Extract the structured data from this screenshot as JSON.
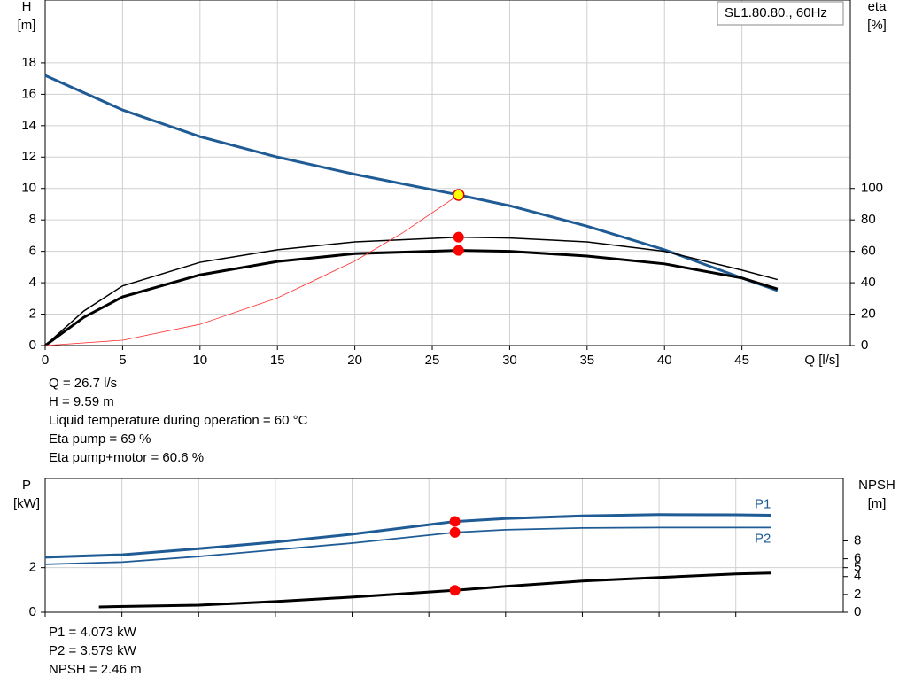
{
  "chart_data": [
    {
      "type": "line",
      "legend_box": "SL1.80.80., 60Hz",
      "ylabel": [
        "H",
        "[m]"
      ],
      "y2label": [
        "eta",
        "[%]"
      ],
      "xlabel": "Q [l/s]",
      "xlim": [
        0,
        52
      ],
      "xticks": [
        0,
        5,
        10,
        15,
        20,
        25,
        30,
        35,
        40,
        45
      ],
      "ylim": [
        0,
        22
      ],
      "yticks": [
        0,
        2,
        4,
        6,
        8,
        10,
        12,
        14,
        16,
        18
      ],
      "y2lim": [
        0,
        220
      ],
      "y2ticks": [
        0,
        20,
        40,
        60,
        80,
        100
      ],
      "grid": true,
      "series": [
        {
          "color": "#1f5b95",
          "width": 3,
          "axis": "y",
          "x": [
            0,
            5,
            10,
            15,
            20,
            26.7,
            30,
            35,
            40,
            45,
            47.3
          ],
          "values": [
            17.2,
            15.0,
            13.3,
            12.0,
            10.9,
            9.59,
            8.9,
            7.6,
            6.1,
            4.3,
            3.5
          ]
        },
        {
          "color": "#000000",
          "width": 1.5,
          "axis": "y2",
          "x": [
            0,
            2.5,
            5,
            10,
            15,
            20,
            26.7,
            30,
            35,
            40,
            45,
            47.3
          ],
          "values": [
            0,
            22,
            38,
            53,
            61,
            66,
            69,
            68.5,
            66,
            60,
            48,
            42
          ]
        },
        {
          "color": "#000000",
          "width": 3,
          "axis": "y2",
          "x": [
            0,
            2.5,
            5,
            10,
            15,
            20,
            26.7,
            30,
            35,
            40,
            45,
            47.3
          ],
          "values": [
            0,
            18,
            31,
            45,
            53.5,
            58.5,
            60.6,
            60,
            57,
            52,
            43,
            36
          ]
        },
        {
          "color": "#ff3030",
          "width": 0.8,
          "axis": "y",
          "x": [
            0,
            5,
            10,
            15,
            20,
            23,
            26.7
          ],
          "values": [
            0,
            0.34,
            1.35,
            3.03,
            5.38,
            7.12,
            9.59
          ]
        }
      ],
      "operating_points": [
        {
          "x": 26.7,
          "y": 9.59,
          "axis": "y",
          "color": "#ffff00"
        },
        {
          "x": 26.7,
          "y": 69,
          "axis": "y2",
          "color": "#ff0000"
        },
        {
          "x": 26.7,
          "y": 60.6,
          "axis": "y2",
          "color": "#ff0000"
        }
      ],
      "info": [
        "Q = 26.7 l/s",
        "H = 9.59 m",
        "Liquid temperature during operation = 60 °C",
        "Eta pump = 69 %",
        "Eta pump+motor = 60.6 %"
      ]
    },
    {
      "type": "line",
      "ylabel": [
        "P",
        "[kW]"
      ],
      "y2label": [
        "NPSH",
        "[m]"
      ],
      "xlim": [
        0,
        52
      ],
      "xticks": [
        0,
        5,
        10,
        15,
        20,
        25,
        30,
        35,
        40,
        45
      ],
      "ylim": [
        0,
        6
      ],
      "yticks": [
        0,
        2
      ],
      "y2lim": [
        0,
        15
      ],
      "y2ticks": [
        0,
        2,
        4,
        5,
        6,
        8
      ],
      "grid": true,
      "series": [
        {
          "name": "P1",
          "color": "#1f5b95",
          "width": 3,
          "axis": "y",
          "x": [
            0,
            5,
            10,
            15,
            20,
            26.7,
            30,
            35,
            40,
            45,
            47.3
          ],
          "values": [
            2.47,
            2.58,
            2.85,
            3.15,
            3.5,
            4.07,
            4.2,
            4.32,
            4.38,
            4.37,
            4.35
          ]
        },
        {
          "name": "P2",
          "color": "#1f5b95",
          "width": 1.8,
          "axis": "y",
          "x": [
            0,
            5,
            10,
            15,
            20,
            26.7,
            30,
            35,
            40,
            45,
            47.3
          ],
          "values": [
            2.15,
            2.25,
            2.5,
            2.8,
            3.1,
            3.58,
            3.7,
            3.78,
            3.8,
            3.8,
            3.8
          ]
        },
        {
          "color": "#000000",
          "width": 3,
          "axis": "y2",
          "x": [
            3.5,
            10,
            15,
            20,
            26.7,
            30,
            35,
            40,
            45,
            47.3
          ],
          "values": [
            0.6,
            0.8,
            1.2,
            1.7,
            2.46,
            2.9,
            3.5,
            3.9,
            4.3,
            4.4
          ]
        }
      ],
      "operating_points": [
        {
          "x": 26.7,
          "y": 4.073,
          "axis": "y",
          "color": "#ff0000"
        },
        {
          "x": 26.7,
          "y": 3.579,
          "axis": "y",
          "color": "#ff0000"
        },
        {
          "x": 26.7,
          "y": 2.46,
          "axis": "y2",
          "color": "#ff0000"
        }
      ],
      "info": [
        "P1 = 4.073 kW",
        "P2 = 3.579 kW",
        "NPSH = 2.46 m"
      ]
    }
  ]
}
